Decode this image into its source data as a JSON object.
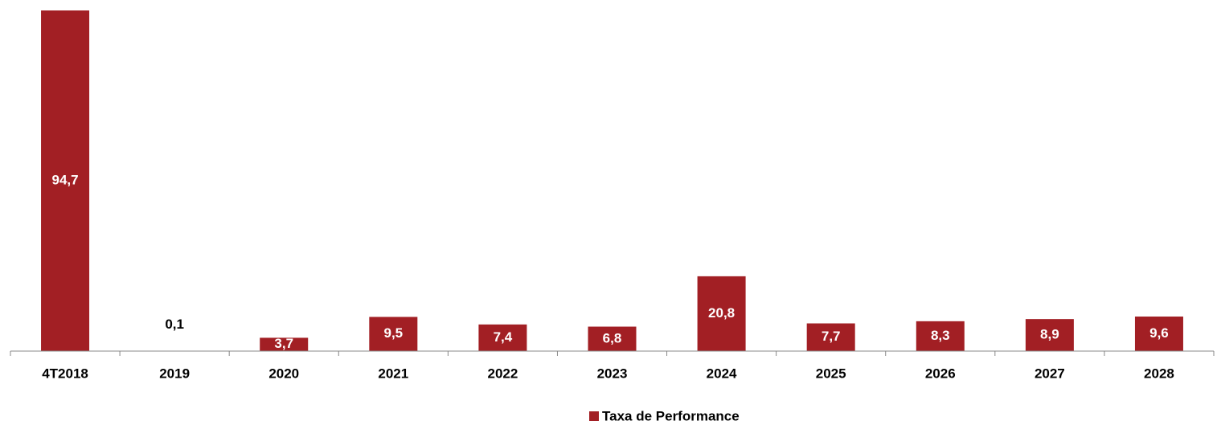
{
  "chart_data": {
    "type": "bar",
    "categories": [
      "4T2018",
      "2019",
      "2020",
      "2021",
      "2022",
      "2023",
      "2024",
      "2025",
      "2026",
      "2027",
      "2028"
    ],
    "series": [
      {
        "name": "Taxa de Performance",
        "color": "#a21f24",
        "values": [
          94.7,
          0.1,
          3.7,
          9.5,
          7.4,
          6.8,
          20.8,
          7.7,
          8.3,
          8.9,
          9.6
        ],
        "value_labels": [
          "94,7",
          "0,1",
          "3,7",
          "9,5",
          "7,4",
          "6,8",
          "20,8",
          "7,7",
          "8,3",
          "8,9",
          "9,6"
        ]
      }
    ],
    "legend": "bottom"
  }
}
